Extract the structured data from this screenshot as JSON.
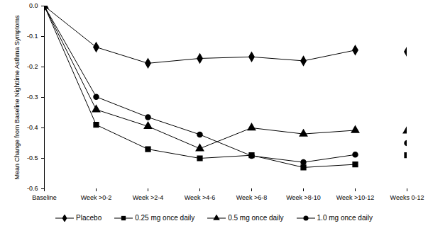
{
  "chart_data": {
    "type": "line",
    "y_label": "Mean Change from Baseline Nighttime Asthma Symptoms",
    "categories": [
      "Baseline",
      "Week >0-2",
      "Week >2-4",
      "Week >4-6",
      "Week >6-8",
      "Week >8-10",
      "Week >10-12",
      "Weeks 0-12"
    ],
    "series": [
      {
        "name": "Placebo",
        "color": "#000000",
        "marker": "diamond",
        "values": [
          0,
          -0.135,
          -0.188,
          -0.172,
          -0.167,
          -0.18,
          -0.145,
          -0.15
        ]
      },
      {
        "name": "0.25 mg once daily",
        "color": "#000000",
        "marker": "square",
        "values": [
          0,
          -0.39,
          -0.47,
          -0.5,
          -0.49,
          -0.53,
          -0.52,
          -0.49
        ]
      },
      {
        "name": "0.5 mg once daily",
        "color": "#000000",
        "marker": "triangle",
        "values": [
          0,
          -0.34,
          -0.395,
          -0.468,
          -0.4,
          -0.42,
          -0.408,
          -0.41
        ]
      },
      {
        "name": "1.0 mg once daily",
        "color": "#000000",
        "marker": "circle",
        "values": [
          0,
          -0.298,
          -0.365,
          -0.422,
          -0.492,
          -0.513,
          -0.488,
          -0.45
        ]
      }
    ],
    "ylim": [
      -0.6,
      0
    ],
    "yticks": [
      {
        "value": 0,
        "label": "0.0"
      },
      -0.1,
      -0.2,
      -0.3,
      -0.4,
      -0.5,
      -0.6
    ],
    "legend": "bottom",
    "grid": false
  }
}
